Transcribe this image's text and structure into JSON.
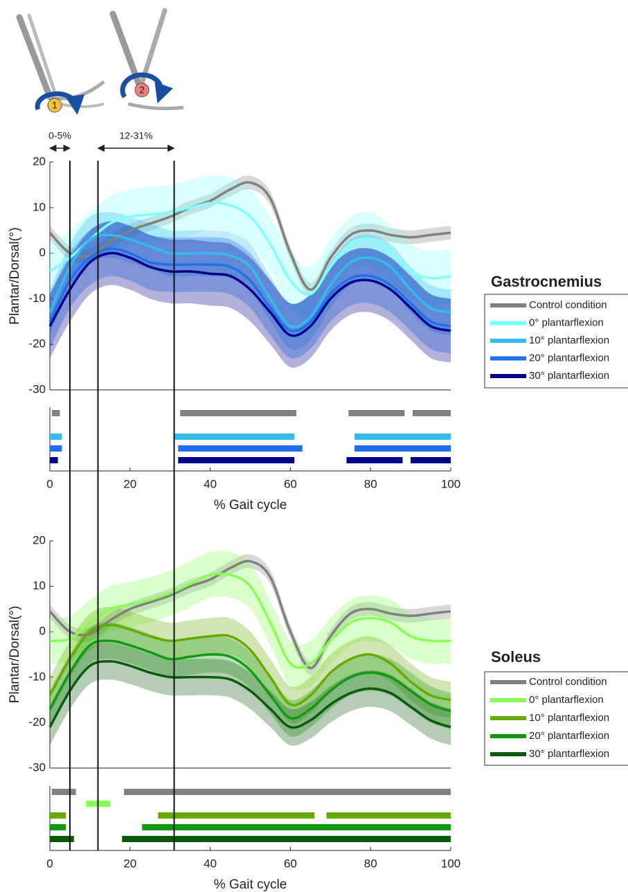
{
  "illustration": {
    "labels": [
      "1",
      "2"
    ]
  },
  "markers": {
    "vertical_lines": [
      5,
      12,
      31
    ],
    "spans": [
      {
        "label": "0-5%",
        "start": 0,
        "end": 5
      },
      {
        "label": "12-31%",
        "start": 12,
        "end": 31
      }
    ]
  },
  "chart_data": [
    {
      "type": "line",
      "legend_title": "Gastrocnemius",
      "ylabel": "Plantar/Dorsal(°)",
      "xlabel": "% Gait cycle",
      "xlim": [
        0,
        100
      ],
      "xticks": [
        0,
        20,
        40,
        60,
        80,
        100
      ],
      "ylim": [
        -30,
        20
      ],
      "yticks": [
        -30,
        -20,
        -10,
        0,
        10,
        20
      ],
      "legend": "right",
      "x": [
        0,
        5,
        10,
        15,
        20,
        25,
        30,
        35,
        40,
        45,
        50,
        55,
        60,
        65,
        70,
        75,
        80,
        85,
        90,
        95,
        100
      ],
      "series": [
        {
          "name": "Control condition",
          "color": "#808080",
          "sd": 1.5,
          "values": [
            4.5,
            0,
            -0.5,
            2.5,
            5,
            6.5,
            8,
            10,
            11.5,
            14,
            15.5,
            12,
            0,
            -8,
            -1,
            4,
            5,
            4,
            3.5,
            4,
            4.5
          ],
          "significance": [
            [
              0.5,
              2.5
            ],
            [
              32.5,
              61.5
            ],
            [
              74.5,
              88.5
            ],
            [
              90.5,
              100
            ]
          ]
        },
        {
          "name": "0° plantarflexion",
          "color": "#80ffff",
          "sd": 6,
          "values": [
            -4,
            -1,
            3,
            6.5,
            8,
            8.5,
            9,
            10,
            11,
            10.5,
            8,
            2,
            -6,
            -9,
            -3,
            2,
            3,
            0,
            -4,
            -5.5,
            -5
          ],
          "significance": []
        },
        {
          "name": "10° plantarflexion",
          "color": "#33bbee",
          "sd": 5,
          "values": [
            -13,
            -3,
            3,
            4,
            3,
            1.5,
            0,
            0,
            0,
            -0.5,
            -3,
            -10,
            -16,
            -14,
            -7,
            -2,
            -1,
            -3,
            -8,
            -12,
            -13
          ],
          "significance": [
            [
              0,
              3
            ],
            [
              31,
              61
            ],
            [
              76,
              100
            ]
          ]
        },
        {
          "name": "20° plantarflexion",
          "color": "#1f6fee",
          "sd": 6,
          "values": [
            -15,
            -6,
            -1,
            1,
            0,
            -2,
            -2.5,
            -2.5,
            -2.5,
            -3,
            -6,
            -12,
            -17,
            -15,
            -9,
            -5.5,
            -5,
            -7,
            -11,
            -15,
            -16
          ],
          "significance": [
            [
              0,
              3
            ],
            [
              32,
              63
            ],
            [
              76,
              100
            ]
          ]
        },
        {
          "name": "30° plantarflexion",
          "color": "#00008b",
          "sd": 7,
          "values": [
            -16,
            -8,
            -2,
            0,
            -1,
            -3,
            -4,
            -4,
            -4.5,
            -5,
            -8,
            -13,
            -18,
            -16,
            -10,
            -6.5,
            -6,
            -8,
            -12,
            -16,
            -17
          ],
          "significance": [
            [
              0,
              2
            ],
            [
              32,
              61
            ],
            [
              74,
              88
            ],
            [
              90,
              100
            ]
          ]
        }
      ]
    },
    {
      "type": "line",
      "legend_title": "Soleus",
      "ylabel": "Plantar/Dorsal(°)",
      "xlabel": "% Gait cycle",
      "xlim": [
        0,
        100
      ],
      "xticks": [
        0,
        20,
        40,
        60,
        80,
        100
      ],
      "ylim": [
        -30,
        20
      ],
      "yticks": [
        -30,
        -20,
        -10,
        0,
        10,
        20
      ],
      "legend": "right",
      "x": [
        0,
        5,
        10,
        15,
        20,
        25,
        30,
        35,
        40,
        45,
        50,
        55,
        60,
        65,
        70,
        75,
        80,
        85,
        90,
        95,
        100
      ],
      "series": [
        {
          "name": "Control condition",
          "color": "#808080",
          "sd": 1.5,
          "values": [
            4.5,
            0,
            -0.5,
            2.5,
            5,
            6.5,
            8,
            10,
            11.5,
            14,
            15.5,
            12,
            0,
            -8,
            -1,
            4,
            5,
            4,
            3.5,
            4,
            4.5
          ],
          "significance": [
            [
              0.5,
              6.5
            ],
            [
              18.5,
              100
            ]
          ]
        },
        {
          "name": "0° plantarflexion",
          "color": "#88ff55",
          "sd": 5,
          "values": [
            -2,
            -1.5,
            2,
            5,
            6,
            7,
            8.5,
            10.5,
            12.5,
            12.5,
            10,
            2,
            -7,
            -7,
            -2,
            2,
            3,
            2,
            -1,
            -2,
            -2
          ],
          "significance": [
            [
              9,
              15
            ]
          ]
        },
        {
          "name": "10° plantarflexion",
          "color": "#66aa00",
          "sd": 4,
          "values": [
            -14,
            -6,
            0,
            1.5,
            0.5,
            -1,
            -2,
            -1.5,
            -1,
            -1,
            -4,
            -10,
            -16,
            -14,
            -9,
            -6,
            -5,
            -7,
            -11,
            -14,
            -15
          ],
          "significance": [
            [
              0,
              4
            ],
            [
              27,
              66
            ],
            [
              69,
              100
            ]
          ]
        },
        {
          "name": "20° plantarflexion",
          "color": "#119911",
          "sd": 4,
          "values": [
            -17,
            -9,
            -3,
            -2,
            -3,
            -4.5,
            -6,
            -5.5,
            -5,
            -5.5,
            -8.5,
            -14,
            -19,
            -17,
            -13,
            -10,
            -9,
            -10,
            -13,
            -16,
            -17.5
          ],
          "significance": [
            [
              0,
              4
            ],
            [
              23,
              100
            ]
          ]
        },
        {
          "name": "30° plantarflexion",
          "color": "#0a5a0a",
          "sd": 4,
          "values": [
            -21,
            -13,
            -7.5,
            -6.5,
            -7.5,
            -9,
            -10,
            -10,
            -10,
            -10.5,
            -13,
            -17,
            -21,
            -19.5,
            -16,
            -13.5,
            -12.5,
            -13.5,
            -16.5,
            -19.5,
            -21
          ],
          "significance": [
            [
              0,
              6
            ],
            [
              18,
              100
            ]
          ]
        }
      ]
    }
  ]
}
